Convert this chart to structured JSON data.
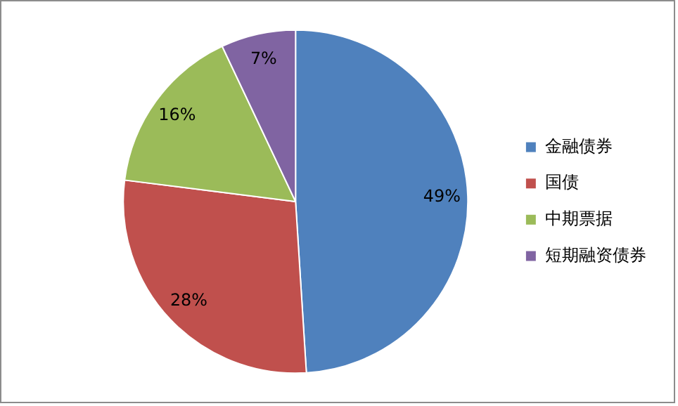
{
  "chart_data": {
    "type": "pie",
    "categories": [
      "金融债券",
      "国债",
      "中期票据",
      "短期融资债券"
    ],
    "values": [
      49,
      28,
      16,
      7
    ],
    "colors": [
      "#4f81bd",
      "#c0504d",
      "#9bbb59",
      "#8064a2"
    ],
    "value_labels": [
      "49%",
      "28%",
      "16%",
      "7%"
    ],
    "legend": "right"
  }
}
